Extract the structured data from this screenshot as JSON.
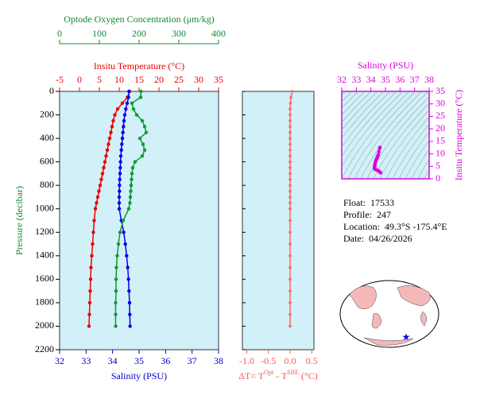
{
  "chart_data": [
    {
      "type": "line",
      "ylabel": "Pressure (decibar)",
      "y": [
        0,
        50,
        100,
        150,
        200,
        250,
        300,
        350,
        400,
        450,
        500,
        550,
        600,
        650,
        700,
        750,
        800,
        850,
        900,
        950,
        1000,
        1100,
        1200,
        1300,
        1400,
        1500,
        1600,
        1700,
        1800,
        1900,
        2000
      ],
      "ylim": [
        0,
        2200
      ],
      "y_inverted": true,
      "yticks": [
        0,
        200,
        400,
        600,
        800,
        1000,
        1200,
        1400,
        1600,
        1800,
        2000,
        2200
      ],
      "background": "#d2f0f8",
      "axes": {
        "oxygen": {
          "label": "Optode Oxygen Concentration (μm/kg)",
          "lim": [
            0,
            400
          ],
          "ticks": [
            0,
            100,
            200,
            300,
            400
          ],
          "color": "#118833",
          "position": "top-outer"
        },
        "temperature": {
          "label": "Insitu Temperature (°C)",
          "lim": [
            -5,
            35
          ],
          "ticks": [
            -5,
            0,
            5,
            10,
            15,
            20,
            25,
            30,
            35
          ],
          "color": "#ee0000",
          "position": "top"
        },
        "salinity": {
          "label": "Salinity (PSU)",
          "lim": [
            32,
            38
          ],
          "ticks": [
            32,
            33,
            34,
            35,
            36,
            37,
            38
          ],
          "color": "#0000cc",
          "position": "bottom"
        }
      },
      "series": [
        {
          "axis": "temperature",
          "color": "#ee0000",
          "values": [
            12.6,
            12.1,
            10.8,
            9.6,
            8.9,
            8.5,
            8.2,
            7.9,
            7.6,
            7.3,
            7.0,
            6.7,
            6.4,
            6.1,
            5.8,
            5.5,
            5.2,
            4.9,
            4.6,
            4.3,
            4.0,
            3.7,
            3.5,
            3.3,
            3.1,
            2.9,
            2.8,
            2.7,
            2.6,
            2.5,
            2.4
          ]
        },
        {
          "axis": "salinity",
          "color": "#0000ee",
          "values": [
            34.62,
            34.6,
            34.55,
            34.5,
            34.46,
            34.43,
            34.41,
            34.39,
            34.37,
            34.35,
            34.33,
            34.31,
            34.3,
            34.29,
            34.28,
            34.27,
            34.26,
            34.26,
            34.25,
            34.25,
            34.25,
            34.33,
            34.42,
            34.48,
            34.53,
            34.57,
            34.6,
            34.62,
            34.64,
            34.65,
            34.66
          ]
        },
        {
          "axis": "oxygen",
          "color": "#119933",
          "values": [
            205,
            204,
            182,
            186,
            194,
            208,
            214,
            218,
            202,
            210,
            214,
            208,
            190,
            184,
            182,
            181,
            180,
            179,
            178,
            177,
            174,
            160,
            152,
            148,
            145,
            143,
            142,
            142,
            141,
            141,
            141
          ]
        }
      ]
    },
    {
      "type": "line",
      "xlabel": {
        "main": "ΔT= T",
        "sup1": "Opt",
        "mid": " - T",
        "sup2": "SBE",
        "end": " (°C)"
      },
      "xlim": [
        -1.1,
        0.55
      ],
      "xticks": [
        {
          "value": -1,
          "label": "-1.0"
        },
        -0.5,
        {
          "value": 0,
          "label": "0.0"
        },
        0.5
      ],
      "color": "#ff6666",
      "label_color": "#ff5555",
      "values": [
        0.05,
        0.02,
        0.01,
        0,
        0,
        0,
        0,
        0,
        0,
        0,
        0,
        0,
        0,
        0,
        0,
        0,
        0,
        0,
        0,
        0,
        0,
        0,
        0,
        0,
        0,
        0,
        0,
        0,
        0,
        0,
        0
      ]
    },
    {
      "type": "scatter",
      "xlabel": "Salinity (PSU)",
      "ylabel": "Insitu Temperature (°C)",
      "xlim": [
        32,
        38
      ],
      "xticks": [
        32,
        33,
        34,
        35,
        36,
        37,
        38
      ],
      "ylim": [
        0,
        35
      ],
      "yticks": [
        0,
        5,
        10,
        15,
        20,
        25,
        30,
        35
      ],
      "color": "#dd00dd"
    }
  ],
  "info": [
    {
      "label": "Float:",
      "value": "17533"
    },
    {
      "label": "Profile:",
      "value": "247"
    },
    {
      "label": "Location:",
      "value": "49.3°S  -175.4°E"
    },
    {
      "label": "Date:",
      "value": "04/26/2026"
    }
  ]
}
